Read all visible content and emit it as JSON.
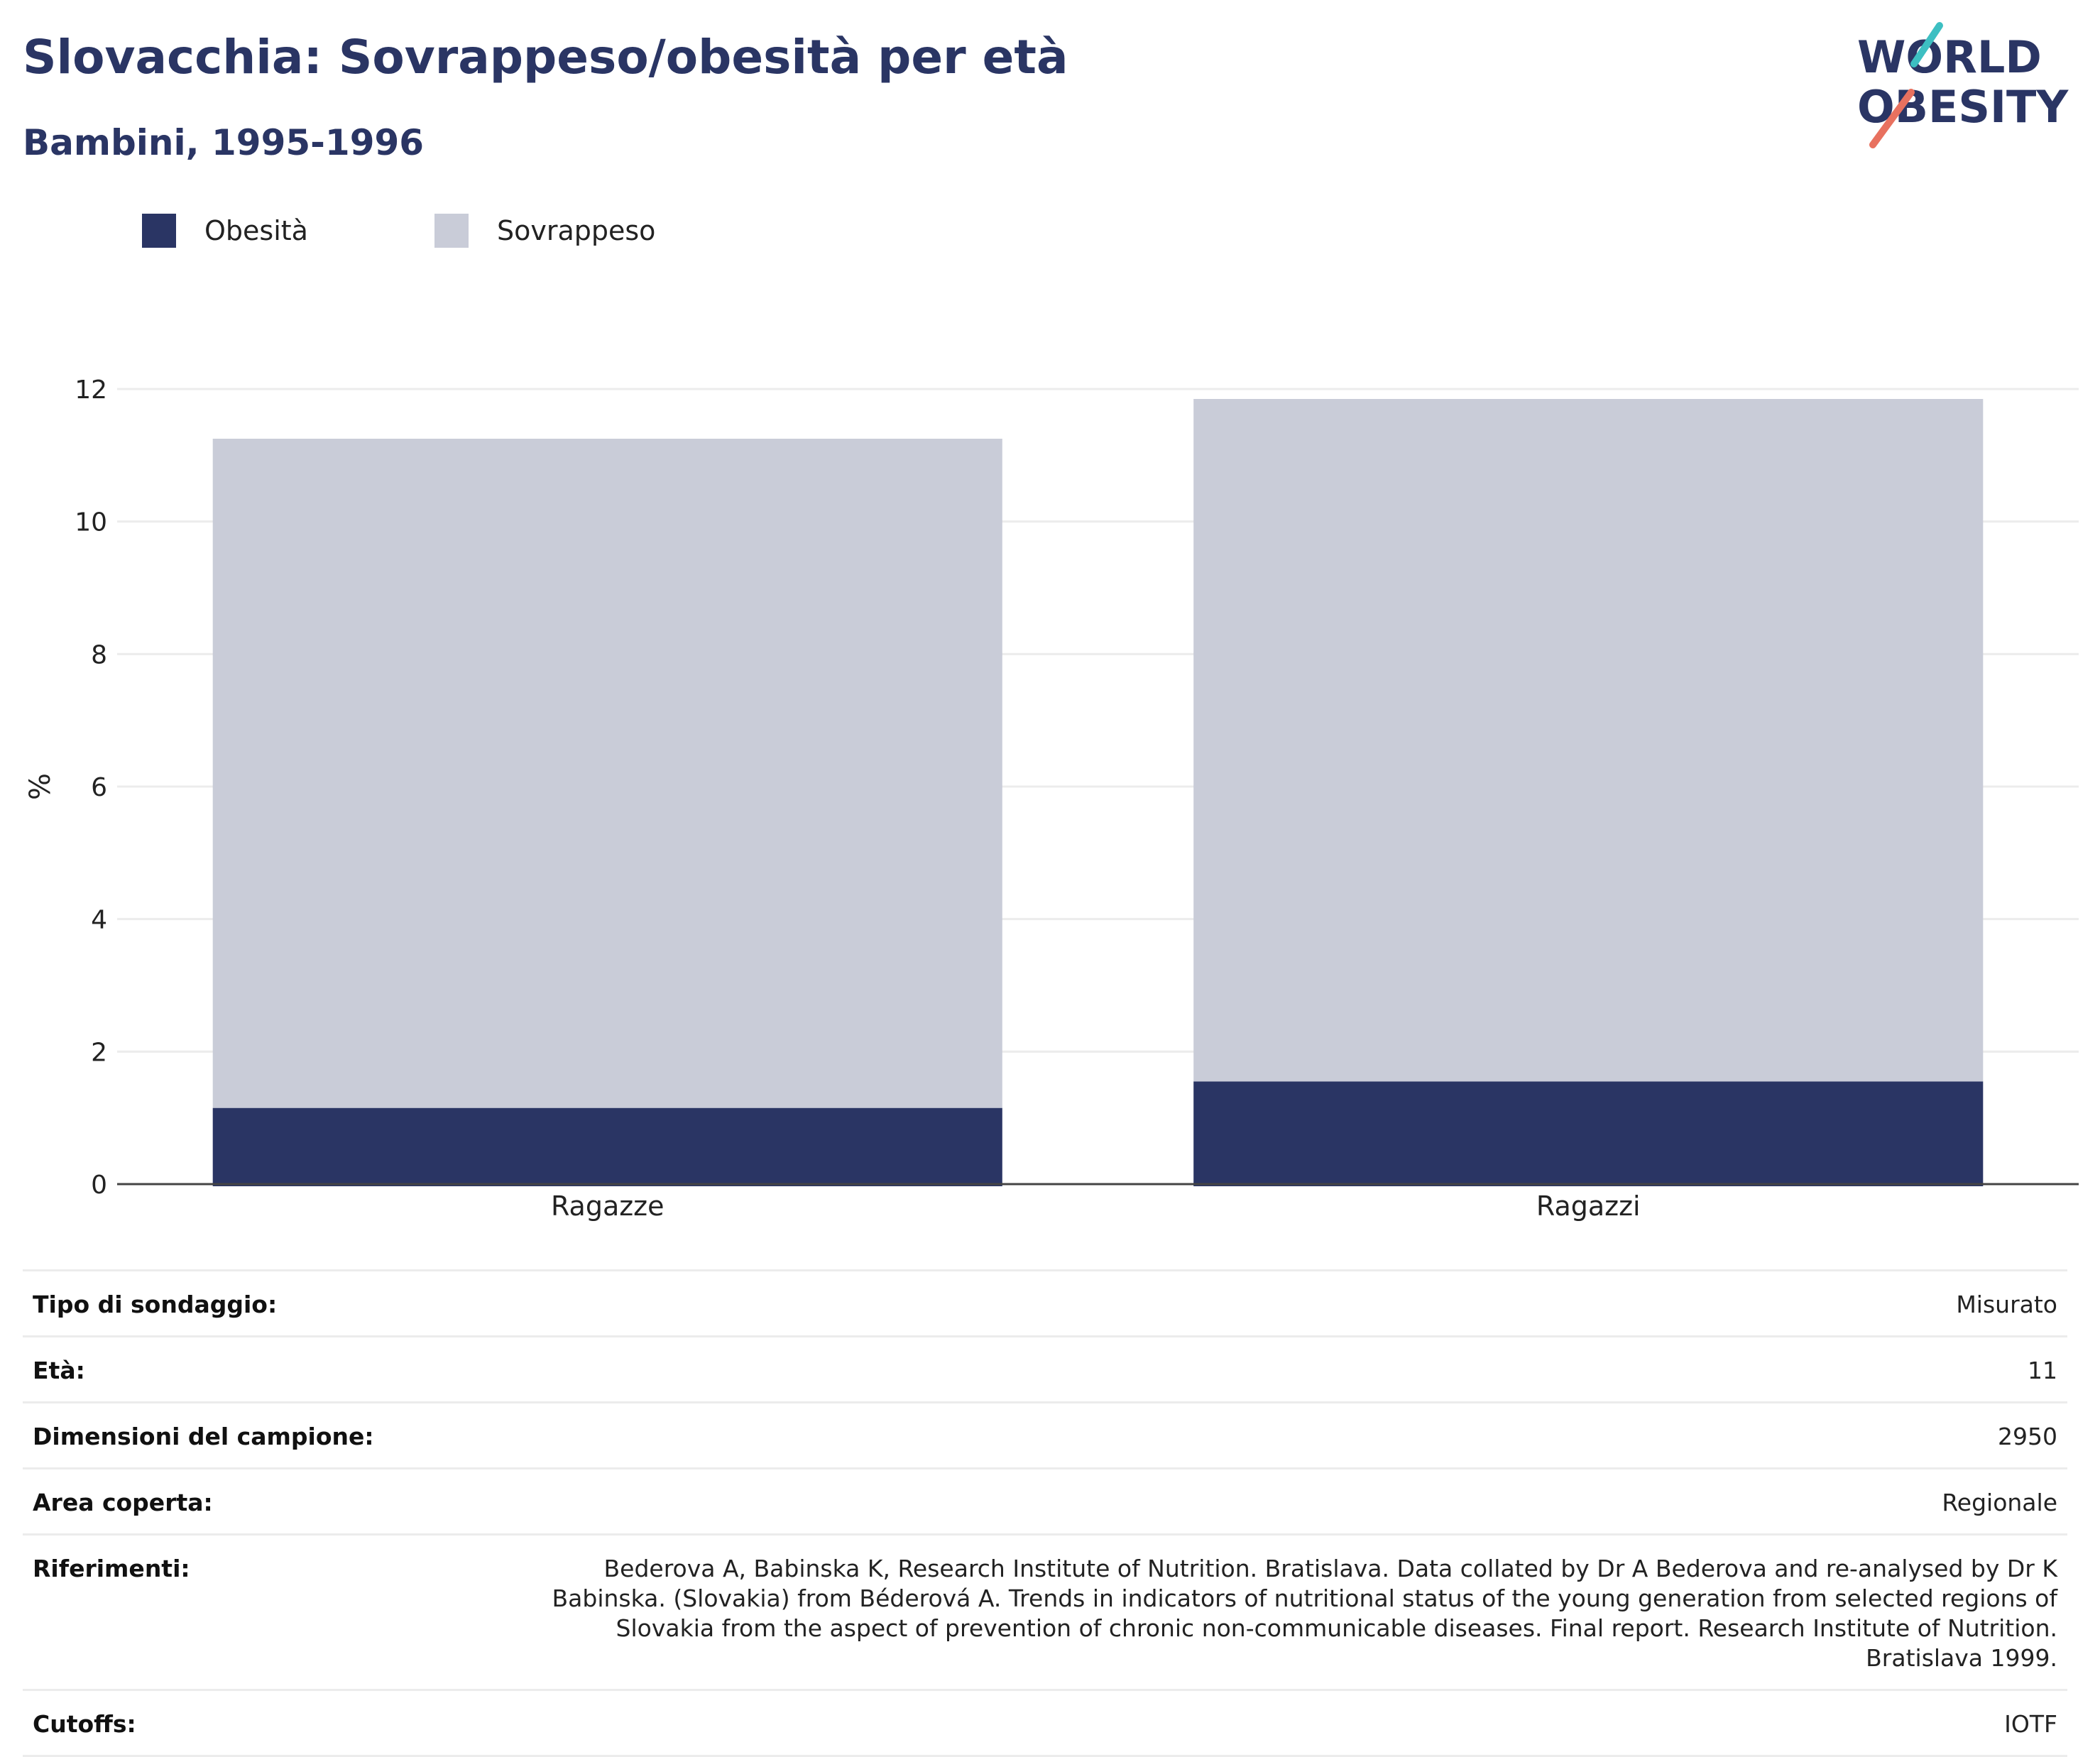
{
  "header": {
    "title": "Slovacchia: Sovrappeso/obesità per età",
    "subtitle": "Bambini, 1995-1996"
  },
  "logo": {
    "line1": "WORLD",
    "line2": "OBESITY"
  },
  "legend": [
    {
      "label": "Obesità",
      "color": "#2a3564"
    },
    {
      "label": "Sovrappeso",
      "color": "#c9ccd8"
    }
  ],
  "chart_data": {
    "type": "bar",
    "stacked": true,
    "categories": [
      "Ragazze",
      "Ragazzi"
    ],
    "series": [
      {
        "name": "Obesità",
        "color": "#2a3564",
        "values": [
          1.15,
          1.55
        ]
      },
      {
        "name": "Sovrappeso",
        "color": "#c9ccd8",
        "values": [
          10.1,
          10.3
        ]
      }
    ],
    "ylabel": "%",
    "ylim": [
      0,
      12
    ],
    "yticks": [
      0,
      2,
      4,
      6,
      8,
      10,
      12
    ],
    "grid": true
  },
  "info": [
    {
      "label": "Tipo di sondaggio:",
      "value": "Misurato"
    },
    {
      "label": "Età:",
      "value": "11"
    },
    {
      "label": "Dimensioni del campione:",
      "value": "2950"
    },
    {
      "label": "Area coperta:",
      "value": "Regionale"
    },
    {
      "label": "Riferimenti:",
      "value": "Bederova A, Babinska K, Research Institute of Nutrition. Bratislava. Data collated by Dr A Bederova and re-analysed by Dr K Babinska. (Slovakia) from Béderová A. Trends in indicators of nutritional status of the young generation from selected regions of Slovakia from the aspect of prevention of chronic non-communicable diseases. Final report. Research Institute of Nutrition. Bratislava 1999."
    },
    {
      "label": "Cutoffs:",
      "value": "IOTF"
    }
  ]
}
